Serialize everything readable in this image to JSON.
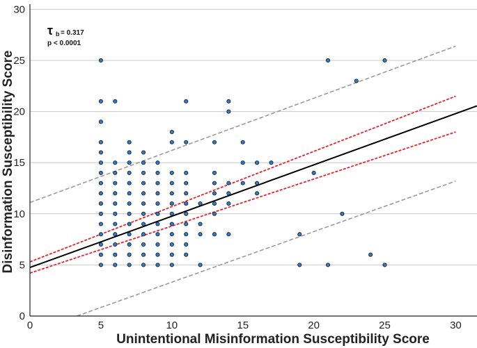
{
  "chart_data": {
    "type": "scatter",
    "xlabel": "Unintentional Misinformation Susceptibility Score",
    "ylabel": "Disinformation Susceptibility Score",
    "xlim": [
      0,
      31.5
    ],
    "ylim": [
      0,
      30.5
    ],
    "xticks": [
      "0",
      "5",
      "10",
      "15",
      "20",
      "25",
      "30"
    ],
    "yticks": [
      "0",
      "5",
      "10",
      "15",
      "20",
      "25",
      "30"
    ],
    "grid": "horizontal",
    "annotation": {
      "tau_symbol": "τ",
      "tau_subscript": "b",
      "tau_value": "= 0.317",
      "p_value": "p < 0.0001"
    },
    "fit_line": {
      "x": [
        0,
        31.5
      ],
      "y": [
        4.75,
        20.55
      ],
      "color": "#000000"
    },
    "confidence_band": {
      "upper": {
        "x": [
          0,
          30
        ],
        "y": [
          5.3,
          21.5
        ]
      },
      "lower": {
        "x": [
          0,
          30
        ],
        "y": [
          4.2,
          18.0
        ]
      },
      "color": "#e8212a"
    },
    "prediction_band": {
      "upper": {
        "x": [
          0,
          30
        ],
        "y": [
          11.1,
          26.4
        ]
      },
      "lower": {
        "x": [
          3.3,
          30
        ],
        "y": [
          0,
          13.2
        ]
      },
      "color": "#9a9a9a"
    },
    "point_color": "#3a7bbf",
    "points": [
      [
        5,
        5
      ],
      [
        5,
        6
      ],
      [
        5,
        7
      ],
      [
        5,
        8
      ],
      [
        5,
        9
      ],
      [
        5,
        10
      ],
      [
        5,
        11
      ],
      [
        5,
        12
      ],
      [
        5,
        13
      ],
      [
        5,
        14
      ],
      [
        5,
        15
      ],
      [
        5,
        16
      ],
      [
        5,
        17
      ],
      [
        5,
        19
      ],
      [
        5,
        21
      ],
      [
        5,
        25
      ],
      [
        6,
        5
      ],
      [
        6,
        6
      ],
      [
        6,
        7
      ],
      [
        6,
        8
      ],
      [
        6,
        9
      ],
      [
        6,
        10
      ],
      [
        6,
        11
      ],
      [
        6,
        12
      ],
      [
        6,
        13
      ],
      [
        6,
        14
      ],
      [
        6,
        15
      ],
      [
        6,
        21
      ],
      [
        7,
        5
      ],
      [
        7,
        6
      ],
      [
        7,
        7
      ],
      [
        7,
        8
      ],
      [
        7,
        9
      ],
      [
        7,
        10
      ],
      [
        7,
        11
      ],
      [
        7,
        12
      ],
      [
        7,
        13
      ],
      [
        7,
        14
      ],
      [
        7,
        15
      ],
      [
        7,
        16
      ],
      [
        7,
        17
      ],
      [
        8,
        5
      ],
      [
        8,
        6
      ],
      [
        8,
        7
      ],
      [
        8,
        8
      ],
      [
        8,
        9
      ],
      [
        8,
        10
      ],
      [
        8,
        11
      ],
      [
        8,
        12
      ],
      [
        8,
        13
      ],
      [
        8,
        14
      ],
      [
        8,
        15
      ],
      [
        8,
        16
      ],
      [
        9,
        5
      ],
      [
        9,
        6
      ],
      [
        9,
        7
      ],
      [
        9,
        8
      ],
      [
        9,
        9
      ],
      [
        9,
        10
      ],
      [
        9,
        11
      ],
      [
        9,
        12
      ],
      [
        9,
        13
      ],
      [
        9,
        14
      ],
      [
        9,
        15
      ],
      [
        10,
        5
      ],
      [
        10,
        6
      ],
      [
        10,
        7
      ],
      [
        10,
        8
      ],
      [
        10,
        9
      ],
      [
        10,
        10
      ],
      [
        10,
        11
      ],
      [
        10,
        12
      ],
      [
        10,
        13
      ],
      [
        10,
        14
      ],
      [
        10,
        17
      ],
      [
        10,
        18
      ],
      [
        11,
        6
      ],
      [
        11,
        7
      ],
      [
        11,
        8
      ],
      [
        11,
        9
      ],
      [
        11,
        10
      ],
      [
        11,
        11
      ],
      [
        11,
        12
      ],
      [
        11,
        13
      ],
      [
        11,
        14
      ],
      [
        11,
        17
      ],
      [
        11,
        21
      ],
      [
        12,
        5
      ],
      [
        12,
        8
      ],
      [
        12,
        9
      ],
      [
        12,
        11
      ],
      [
        13,
        8
      ],
      [
        13,
        10
      ],
      [
        13,
        11
      ],
      [
        13,
        12
      ],
      [
        13,
        13
      ],
      [
        13,
        14
      ],
      [
        13,
        17
      ],
      [
        14,
        8
      ],
      [
        14,
        11
      ],
      [
        14,
        12
      ],
      [
        14,
        13
      ],
      [
        14,
        20
      ],
      [
        14,
        21
      ],
      [
        15,
        13
      ],
      [
        15,
        15
      ],
      [
        15,
        17
      ],
      [
        16,
        12
      ],
      [
        16,
        13
      ],
      [
        16,
        15
      ],
      [
        17,
        15
      ],
      [
        19,
        5
      ],
      [
        19,
        8
      ],
      [
        20,
        14
      ],
      [
        21,
        5
      ],
      [
        21,
        25
      ],
      [
        22,
        10
      ],
      [
        23,
        23
      ],
      [
        24,
        6
      ],
      [
        25,
        5
      ],
      [
        25,
        25
      ]
    ]
  }
}
